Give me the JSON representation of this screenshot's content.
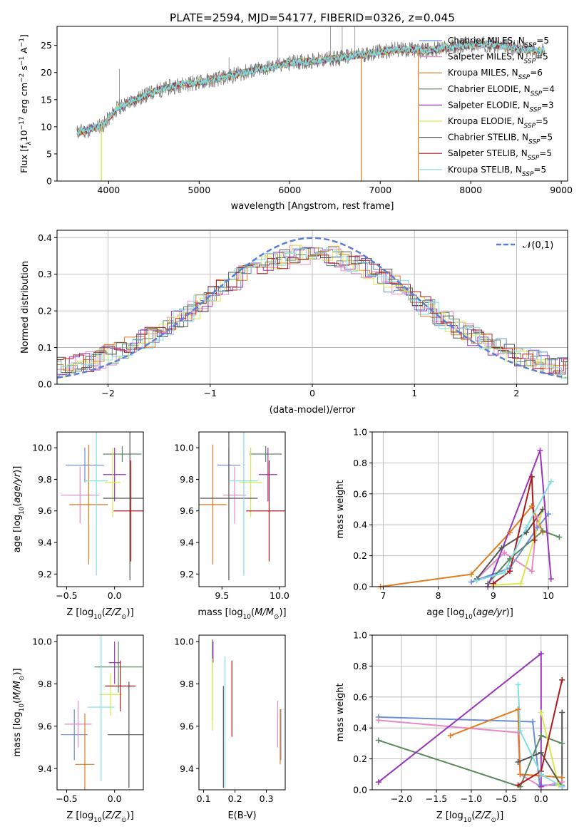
{
  "figure_title": "PLATE=2594, MJD=54177, FIBERID=0326, z=0.045",
  "models": [
    {
      "name": "Chabrier MILES",
      "nssp": "5",
      "color": "#6b8ed6"
    },
    {
      "name": "Salpeter MILES",
      "nssp": "5",
      "color": "#e889c6"
    },
    {
      "name": "Kroupa MILES",
      "nssp": "6",
      "color": "#e07b1f"
    },
    {
      "name": "Chabrier ELODIE",
      "nssp": "4",
      "color": "#5a8a5e"
    },
    {
      "name": "Salpeter ELODIE",
      "nssp": "3",
      "color": "#9a34b8"
    },
    {
      "name": "Kroupa ELODIE",
      "nssp": "5",
      "color": "#d8e84a"
    },
    {
      "name": "Chabrier STELIB",
      "nssp": "5",
      "color": "#555555"
    },
    {
      "name": "Salpeter STELIB",
      "nssp": "5",
      "color": "#b01818"
    },
    {
      "name": "Kroupa STELIB",
      "nssp": "5",
      "color": "#7fdfe3"
    }
  ],
  "legend_suffix": "N",
  "legend_sub": "SSP",
  "chart_data": [
    {
      "id": "spectrum",
      "type": "line",
      "xlabel": "wavelength [Angstrom, rest frame]",
      "ylabel": "Flux [f_λ 10^-17 erg cm^-2 s^-1 A^-1]",
      "xlim": [
        3430,
        9070
      ],
      "ylim": [
        0,
        28.5
      ],
      "xticks": [
        4000,
        5000,
        6000,
        7000,
        8000,
        9000
      ],
      "yticks": [
        0,
        5,
        10,
        15,
        20,
        25
      ],
      "grid": false,
      "legend": "right",
      "continuum": [
        [
          3650,
          9.0
        ],
        [
          3800,
          9.5
        ],
        [
          3950,
          10.5
        ],
        [
          4100,
          13.5
        ],
        [
          4300,
          15.0
        ],
        [
          4500,
          16.5
        ],
        [
          4800,
          17.8
        ],
        [
          5000,
          18.2
        ],
        [
          5200,
          18.8
        ],
        [
          5500,
          20.0
        ],
        [
          5800,
          21.0
        ],
        [
          6000,
          21.8
        ],
        [
          6300,
          22.2
        ],
        [
          6500,
          22.6
        ],
        [
          6800,
          23.3
        ],
        [
          7000,
          23.8
        ],
        [
          7200,
          24.3
        ],
        [
          7500,
          24.0
        ],
        [
          7800,
          24.7
        ],
        [
          8100,
          25.3
        ],
        [
          8400,
          24.8
        ],
        [
          8600,
          24.2
        ],
        [
          8800,
          24.0
        ]
      ],
      "data_range": [
        3650,
        8820
      ],
      "drops": [
        [
          3920,
          "#d8e84a"
        ],
        [
          6790,
          "#e07b1f"
        ],
        [
          7420,
          "#e07b1f"
        ]
      ],
      "spikes": [
        [
          4120,
          7
        ],
        [
          5330,
          3.5
        ],
        [
          5870,
          8.5
        ],
        [
          6450,
          7.5
        ],
        [
          6580,
          9
        ],
        [
          6720,
          6.5
        ]
      ]
    },
    {
      "id": "residuals",
      "type": "histogram",
      "xlabel": "(data-model)/error",
      "ylabel": "Normed distribution",
      "xlim": [
        -2.5,
        2.5
      ],
      "ylim": [
        0,
        0.42
      ],
      "xticks": [
        -2,
        -1,
        0,
        1,
        2
      ],
      "yticks": [
        0.0,
        0.1,
        0.2,
        0.3,
        0.4
      ],
      "grid": true,
      "legend_label": "𝒩(0,1)",
      "gaussian_color": "#5b7fd6",
      "bin_width": 0.1
    },
    {
      "id": "age_vs_Z",
      "type": "scatter",
      "xlabel": "Z [log10(Z/Z⊙)]",
      "ylabel": "age [log10(age/yr)]",
      "xlim": [
        -0.6,
        0.3
      ],
      "ylim": [
        9.12,
        10.1
      ],
      "xticks": [
        -0.5,
        0.0
      ],
      "yticks": [
        9.2,
        9.4,
        9.6,
        9.8,
        10.0
      ],
      "points": [
        {
          "x": -0.31,
          "xe": 0.2,
          "y": 9.89,
          "ye": 0.11
        },
        {
          "x": -0.36,
          "xe": 0.2,
          "y": 9.7,
          "ye": 0.18
        },
        {
          "x": -0.27,
          "xe": 0.2,
          "y": 9.64,
          "ye": 0.38
        },
        {
          "x": 0.08,
          "xe": 0.2,
          "y": 9.96,
          "ye": 0.05
        },
        {
          "x": 0.0,
          "xe": 0.12,
          "y": 9.83,
          "ye": 0.17
        },
        {
          "x": -0.02,
          "xe": 0.08,
          "y": 9.78,
          "ye": 0.22
        },
        {
          "x": 0.16,
          "xe": 0.28,
          "y": 9.68,
          "ye": 0.52
        },
        {
          "x": 0.17,
          "xe": 0.18,
          "y": 9.6,
          "ye": 0.32
        },
        {
          "x": -0.19,
          "xe": 0.12,
          "y": 9.79,
          "ye": 0.6
        }
      ]
    },
    {
      "id": "age_vs_mass",
      "type": "scatter",
      "xlabel": "mass [log10(M/M⊙)]",
      "ylabel": "",
      "xlim": [
        9.3,
        10.05
      ],
      "ylim": [
        9.12,
        10.1
      ],
      "xticks": [
        9.5,
        10.0
      ],
      "yticks": [
        9.2,
        9.4,
        9.6,
        9.8,
        10.0
      ],
      "points": [
        {
          "x": 9.56,
          "xe": 0.1,
          "y": 9.89,
          "ye": 0.11
        },
        {
          "x": 9.61,
          "xe": 0.1,
          "y": 9.7,
          "ye": 0.18
        },
        {
          "x": 9.42,
          "xe": 0.12,
          "y": 9.64,
          "ye": 0.38
        },
        {
          "x": 9.88,
          "xe": 0.14,
          "y": 9.96,
          "ye": 0.05
        },
        {
          "x": 9.9,
          "xe": 0.08,
          "y": 9.83,
          "ye": 0.17
        },
        {
          "x": 9.75,
          "xe": 0.1,
          "y": 9.78,
          "ye": 0.22
        },
        {
          "x": 9.56,
          "xe": 0.25,
          "y": 9.68,
          "ye": 0.52
        },
        {
          "x": 9.91,
          "xe": 0.2,
          "y": 9.6,
          "ye": 0.32
        },
        {
          "x": 9.69,
          "xe": 0.12,
          "y": 9.79,
          "ye": 0.6
        }
      ]
    },
    {
      "id": "weight_vs_age",
      "type": "line",
      "xlabel": "age [log10(age/yr)]",
      "ylabel": "mass weight",
      "xlim": [
        6.8,
        10.35
      ],
      "ylim": [
        0,
        1
      ],
      "xticks": [
        7,
        8,
        9,
        10
      ],
      "yticks": [
        0.0,
        0.2,
        0.4,
        0.6,
        0.8,
        1.0
      ],
      "grid": true,
      "series": [
        {
          "points": [
            [
              8.6,
              0.03
            ],
            [
              9.3,
              0.12
            ],
            [
              9.8,
              0.38
            ],
            [
              10.0,
              0.47
            ]
          ]
        },
        {
          "points": [
            [
              8.7,
              0.05
            ],
            [
              9.2,
              0.22
            ],
            [
              9.7,
              0.1
            ],
            [
              9.8,
              0.45
            ]
          ]
        },
        {
          "points": [
            [
              6.95,
              0.0
            ],
            [
              8.6,
              0.08
            ],
            [
              9.3,
              0.35
            ],
            [
              9.7,
              0.52
            ],
            [
              9.9,
              0.35
            ]
          ]
        },
        {
          "points": [
            [
              8.9,
              0.02
            ],
            [
              9.3,
              0.18
            ],
            [
              9.9,
              0.36
            ],
            [
              10.2,
              0.32
            ]
          ]
        },
        {
          "points": [
            [
              8.9,
              0.0
            ],
            [
              9.85,
              0.88
            ],
            [
              10.05,
              0.05
            ]
          ]
        },
        {
          "points": [
            [
              9.0,
              0.01
            ],
            [
              9.5,
              0.02
            ],
            [
              9.9,
              0.5
            ]
          ]
        },
        {
          "points": [
            [
              8.7,
              0.05
            ],
            [
              9.15,
              0.25
            ],
            [
              9.6,
              0.35
            ],
            [
              9.9,
              0.5
            ]
          ]
        },
        {
          "points": [
            [
              9.0,
              0.02
            ],
            [
              9.3,
              0.1
            ],
            [
              9.7,
              0.71
            ],
            [
              9.75,
              0.3
            ]
          ]
        },
        {
          "points": [
            [
              8.7,
              0.04
            ],
            [
              9.2,
              0.09
            ],
            [
              9.6,
              0.38
            ],
            [
              10.05,
              0.68
            ]
          ]
        }
      ]
    },
    {
      "id": "mass_vs_Z",
      "type": "scatter",
      "xlabel": "Z [log10(Z/Z⊙)]",
      "ylabel": "mass [log10(M/M⊙)]",
      "xlim": [
        -0.6,
        0.3
      ],
      "ylim": [
        9.3,
        10.03
      ],
      "xticks": [
        -0.5,
        0.0
      ],
      "yticks": [
        9.4,
        9.6,
        9.8,
        10.0
      ],
      "points": [
        {
          "x": -0.42,
          "xe": 0.14,
          "y": 9.56,
          "ye": 0.12
        },
        {
          "x": -0.38,
          "xe": 0.14,
          "y": 9.61,
          "ye": 0.11
        },
        {
          "x": -0.31,
          "xe": 0.1,
          "y": 9.42,
          "ye": 0.24
        },
        {
          "x": 0.04,
          "xe": 0.25,
          "y": 9.88,
          "ye": 0.12
        },
        {
          "x": 0.0,
          "xe": 0.06,
          "y": 9.9,
          "ye": 0.1
        },
        {
          "x": -0.04,
          "xe": 0.12,
          "y": 9.75,
          "ye": 0.1
        },
        {
          "x": 0.15,
          "xe": 0.22,
          "y": 9.56,
          "ye": 0.25
        },
        {
          "x": 0.06,
          "xe": 0.16,
          "y": 9.79,
          "ye": 0.12
        },
        {
          "x": -0.14,
          "xe": 0.14,
          "y": 9.69,
          "ye": 0.35
        }
      ]
    },
    {
      "id": "mass_vs_ebv",
      "type": "scatter",
      "xlabel": "E(B-V)",
      "ylabel": "",
      "xlim": [
        0.085,
        0.36
      ],
      "ylim": [
        9.3,
        10.03
      ],
      "xticks": [
        0.1,
        0.2,
        0.3
      ],
      "yticks": [
        9.4,
        9.6,
        9.8,
        10.0
      ],
      "points": [
        {
          "x": 0.346,
          "xe": 0,
          "y": 9.56,
          "ye": 0.12
        },
        {
          "x": 0.336,
          "xe": 0,
          "y": 9.61,
          "ye": 0.11
        },
        {
          "x": 0.344,
          "xe": 0,
          "y": 9.55,
          "ye": 0.13
        },
        {
          "x": 0.128,
          "xe": 0,
          "y": 9.82,
          "ye": 0.19
        },
        {
          "x": 0.13,
          "xe": 0,
          "y": 9.95,
          "ye": 0.05
        },
        {
          "x": 0.128,
          "xe": 0,
          "y": 9.75,
          "ye": 0.17
        },
        {
          "x": 0.163,
          "xe": 0,
          "y": 9.55,
          "ye": 0.24
        },
        {
          "x": 0.19,
          "xe": 0,
          "y": 9.73,
          "ye": 0.18
        },
        {
          "x": 0.168,
          "xe": 0,
          "y": 9.62,
          "ye": 0.31
        }
      ]
    },
    {
      "id": "weight_vs_Z",
      "type": "line",
      "xlabel": "Z [log10(Z/Z⊙)]",
      "ylabel": "mass weight",
      "xlim": [
        -2.42,
        0.38
      ],
      "ylim": [
        0,
        1
      ],
      "xticks": [
        -2.0,
        -1.5,
        -1.0,
        -0.5,
        0.0
      ],
      "yticks": [
        0.0,
        0.2,
        0.4,
        0.6,
        0.8,
        1.0
      ],
      "grid": true,
      "series": [
        {
          "points": [
            [
              -2.33,
              0.47
            ],
            [
              -0.12,
              0.44
            ],
            [
              -0.02,
              0.03
            ],
            [
              0.3,
              0.03
            ]
          ]
        },
        {
          "points": [
            [
              -2.33,
              0.45
            ],
            [
              -0.33,
              0.37
            ],
            [
              -0.3,
              0.1
            ],
            [
              0.0,
              0.02
            ],
            [
              0.3,
              0.05
            ]
          ]
        },
        {
          "points": [
            [
              -1.3,
              0.35
            ],
            [
              -0.33,
              0.52
            ],
            [
              -0.3,
              0.1
            ],
            [
              0.3,
              0.08
            ]
          ]
        },
        {
          "points": [
            [
              -2.33,
              0.32
            ],
            [
              -0.3,
              0.02
            ],
            [
              0.0,
              0.35
            ],
            [
              0.3,
              0.3
            ]
          ]
        },
        {
          "points": [
            [
              -2.33,
              0.05
            ],
            [
              0.0,
              0.88
            ],
            [
              0.0,
              0.02
            ]
          ]
        },
        {
          "points": [
            [
              0.0,
              0.5
            ],
            [
              0.25,
              0.03
            ]
          ]
        },
        {
          "points": [
            [
              -0.33,
              0.18
            ],
            [
              0.0,
              0.24
            ],
            [
              0.3,
              0.02
            ],
            [
              0.3,
              0.5
            ]
          ]
        },
        {
          "points": [
            [
              -0.33,
              0.03
            ],
            [
              0.0,
              0.12
            ],
            [
              0.3,
              0.71
            ]
          ]
        },
        {
          "points": [
            [
              -0.33,
              0.68
            ],
            [
              -0.3,
              0.38
            ],
            [
              0.0,
              0.1
            ],
            [
              0.3,
              0.02
            ]
          ]
        }
      ]
    }
  ]
}
